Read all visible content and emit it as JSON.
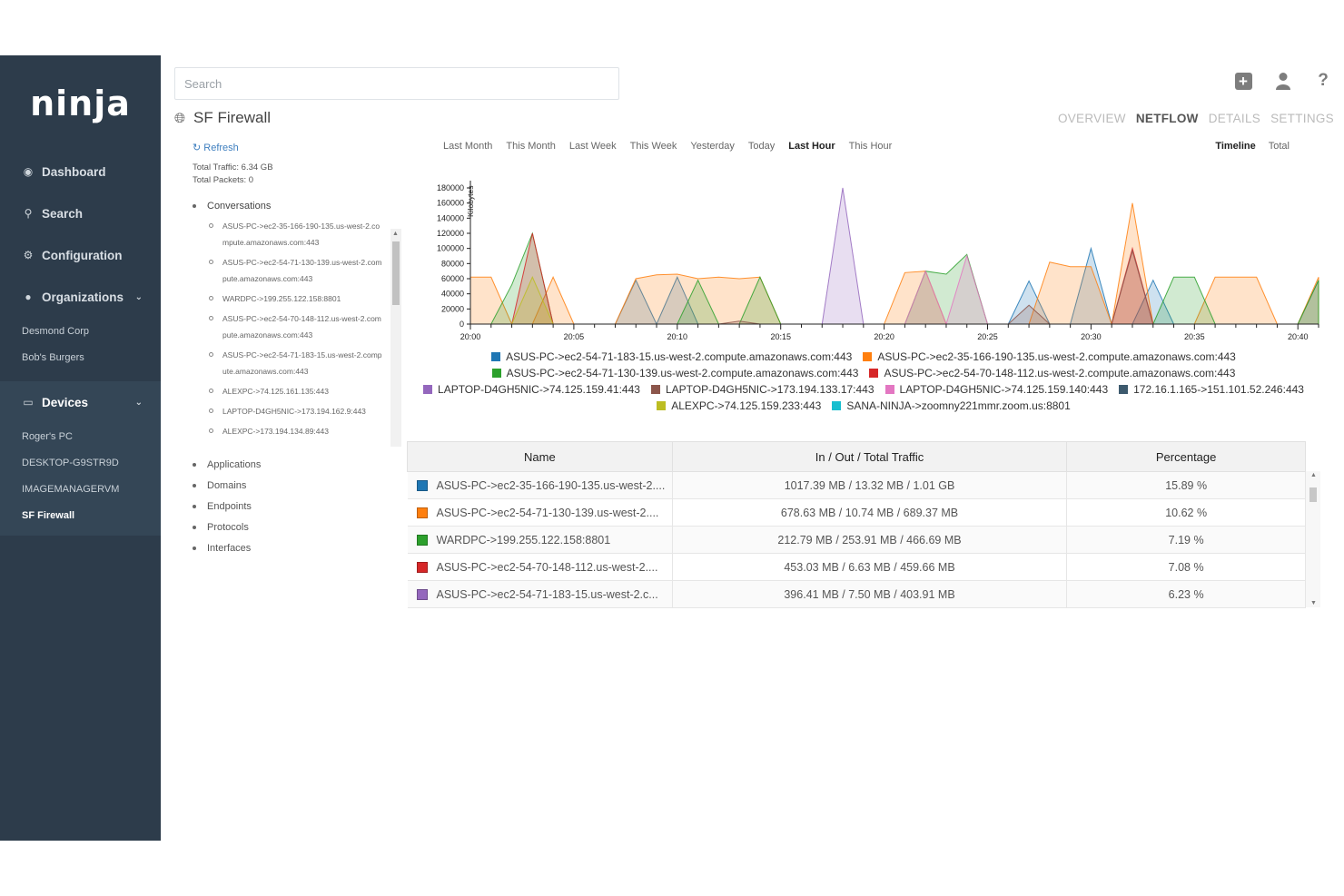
{
  "app": {
    "logo": "ninja"
  },
  "sidebar": {
    "items": [
      {
        "label": "Dashboard",
        "icon": "dashboard-icon"
      },
      {
        "label": "Search",
        "icon": "search-icon"
      },
      {
        "label": "Configuration",
        "icon": "gear-icon"
      },
      {
        "label": "Organizations",
        "icon": "user-icon"
      }
    ],
    "organizations": [
      "Desmond Corp",
      "Bob's Burgers"
    ],
    "devices_label": "Devices",
    "devices": [
      "Roger's PC",
      "DESKTOP-G9STR9D",
      "IMAGEMANAGERVM",
      "SF Firewall"
    ]
  },
  "search": {
    "placeholder": "Search"
  },
  "header": {
    "title": "SF Firewall",
    "tabs": [
      "OVERVIEW",
      "NETFLOW",
      "DETAILS",
      "SETTINGS"
    ],
    "active_tab": "NETFLOW"
  },
  "panel": {
    "refresh": "Refresh",
    "total_traffic": "Total Traffic: 6.34 GB",
    "total_packets": "Total Packets: 0",
    "conversations_label": "Conversations",
    "conversations": [
      "ASUS-PC->ec2-35-166-190-135.us-west-2.compute.amazonaws.com:443",
      "ASUS-PC->ec2-54-71-130-139.us-west-2.compute.amazonaws.com:443",
      "WARDPC->199.255.122.158:8801",
      "ASUS-PC->ec2-54-70-148-112.us-west-2.compute.amazonaws.com:443",
      "ASUS-PC->ec2-54-71-183-15.us-west-2.compute.amazonaws.com:443",
      "ALEXPC->74.125.161.135:443",
      "LAPTOP-D4GH5NIC->173.194.162.9:443",
      "ALEXPC->173.194.134.89:443"
    ],
    "other_groups": [
      "Applications",
      "Domains",
      "Endpoints",
      "Protocols",
      "Interfaces"
    ]
  },
  "ranges": [
    "Last Month",
    "This Month",
    "Last Week",
    "This Week",
    "Yesterday",
    "Today",
    "Last Hour",
    "This Hour"
  ],
  "active_range": "Last Hour",
  "views": [
    "Timeline",
    "Total"
  ],
  "active_view": "Timeline",
  "chart_data": {
    "type": "area",
    "ylabel": "Kilobytes",
    "ylim": [
      0,
      180000
    ],
    "yticks": [
      0,
      20000,
      40000,
      60000,
      80000,
      100000,
      120000,
      140000,
      160000,
      180000
    ],
    "xticks": [
      "20:00",
      "20:05",
      "20:10",
      "20:15",
      "20:20",
      "20:25",
      "20:30",
      "20:35",
      "20:40"
    ],
    "x_minutes": [
      0,
      1,
      2,
      3,
      4,
      5,
      6,
      7,
      8,
      9,
      10,
      11,
      12,
      13,
      14,
      15,
      16,
      17,
      18,
      19,
      20,
      21,
      22,
      23,
      24,
      25,
      26,
      27,
      28,
      29,
      30,
      31,
      32,
      33,
      34,
      35,
      36,
      37,
      38,
      39,
      40,
      41
    ],
    "series": [
      {
        "name": "ASUS-PC->ec2-54-71-183-15.us-west-2.compute.amazonaws.com:443",
        "color": "#1f77b4",
        "values": [
          0,
          0,
          0,
          0,
          0,
          0,
          0,
          0,
          58000,
          0,
          62000,
          0,
          0,
          0,
          0,
          0,
          0,
          0,
          0,
          0,
          0,
          0,
          0,
          0,
          0,
          0,
          0,
          57000,
          0,
          0,
          100000,
          0,
          0,
          58000,
          0,
          0,
          0,
          0,
          0,
          0,
          0,
          58000
        ]
      },
      {
        "name": "ASUS-PC->ec2-35-166-190-135.us-west-2.compute.amazonaws.com:443",
        "color": "#ff7f0e",
        "values": [
          62000,
          62000,
          0,
          0,
          62000,
          0,
          0,
          0,
          60000,
          65000,
          66000,
          60000,
          62000,
          60000,
          62000,
          0,
          0,
          0,
          0,
          0,
          0,
          68000,
          70000,
          0,
          0,
          0,
          0,
          0,
          82000,
          76000,
          76000,
          0,
          160000,
          0,
          0,
          0,
          62000,
          62000,
          62000,
          0,
          0,
          62000
        ]
      },
      {
        "name": "ASUS-PC->ec2-54-71-130-139.us-west-2.compute.amazonaws.com:443",
        "color": "#2ca02c",
        "values": [
          0,
          0,
          52000,
          120000,
          0,
          0,
          0,
          0,
          0,
          0,
          0,
          58000,
          0,
          0,
          62000,
          0,
          0,
          0,
          0,
          0,
          0,
          0,
          70000,
          66000,
          92000,
          0,
          0,
          0,
          0,
          0,
          0,
          0,
          0,
          0,
          62000,
          62000,
          0,
          0,
          0,
          0,
          0,
          58000
        ]
      },
      {
        "name": "ASUS-PC->ec2-54-70-148-112.us-west-2.compute.amazonaws.com:443",
        "color": "#d62728",
        "values": [
          0,
          0,
          0,
          120000,
          0,
          0,
          0,
          0,
          0,
          0,
          0,
          0,
          0,
          0,
          0,
          0,
          0,
          0,
          0,
          0,
          0,
          0,
          0,
          0,
          0,
          0,
          0,
          0,
          0,
          0,
          0,
          0,
          100000,
          0,
          0,
          0,
          0,
          0,
          0,
          0,
          0,
          0
        ]
      },
      {
        "name": "LAPTOP-D4GH5NIC->74.125.159.41:443",
        "color": "#9467bd",
        "values": [
          0,
          0,
          0,
          0,
          0,
          0,
          0,
          0,
          0,
          0,
          0,
          0,
          0,
          0,
          0,
          0,
          0,
          0,
          180000,
          0,
          0,
          0,
          0,
          0,
          0,
          0,
          0,
          0,
          0,
          0,
          0,
          0,
          0,
          0,
          0,
          0,
          0,
          0,
          0,
          0,
          0,
          0
        ]
      },
      {
        "name": "LAPTOP-D4GH5NIC->173.194.133.17:443",
        "color": "#8c564b",
        "values": [
          0,
          0,
          0,
          0,
          0,
          0,
          0,
          0,
          0,
          0,
          0,
          0,
          0,
          4000,
          0,
          0,
          0,
          0,
          0,
          0,
          0,
          0,
          0,
          0,
          0,
          0,
          0,
          25000,
          0,
          0,
          0,
          0,
          97000,
          0,
          0,
          0,
          0,
          0,
          0,
          0,
          0,
          0
        ]
      },
      {
        "name": "LAPTOP-D4GH5NIC->74.125.159.140:443",
        "color": "#e377c2",
        "values": [
          0,
          0,
          0,
          0,
          0,
          0,
          0,
          0,
          0,
          0,
          0,
          0,
          0,
          0,
          0,
          0,
          0,
          0,
          0,
          0,
          0,
          0,
          70000,
          0,
          90000,
          0,
          0,
          0,
          0,
          0,
          0,
          0,
          0,
          0,
          0,
          0,
          0,
          0,
          0,
          0,
          0,
          0
        ]
      },
      {
        "name": "172.16.1.165->151.101.52.246:443",
        "color": "#3d5a6e",
        "values": [
          0,
          0,
          0,
          0,
          0,
          0,
          0,
          0,
          0,
          0,
          0,
          0,
          0,
          0,
          0,
          0,
          0,
          0,
          0,
          0,
          0,
          0,
          0,
          0,
          0,
          0,
          0,
          0,
          0,
          0,
          0,
          0,
          0,
          0,
          0,
          0,
          0,
          0,
          0,
          0,
          0,
          0
        ]
      },
      {
        "name": "ALEXPC->74.125.159.233:443",
        "color": "#bcbd22",
        "values": [
          0,
          0,
          0,
          62000,
          0,
          0,
          0,
          0,
          0,
          0,
          0,
          0,
          0,
          0,
          0,
          0,
          0,
          0,
          0,
          0,
          0,
          0,
          0,
          0,
          0,
          0,
          0,
          0,
          0,
          0,
          0,
          0,
          0,
          0,
          0,
          0,
          0,
          0,
          0,
          0,
          0,
          0
        ]
      },
      {
        "name": "SANA-NINJA->zoomny221mmr.zoom.us:8801",
        "color": "#17becf",
        "values": [
          0,
          0,
          0,
          0,
          0,
          0,
          0,
          0,
          0,
          0,
          0,
          0,
          0,
          0,
          0,
          0,
          0,
          0,
          0,
          0,
          0,
          0,
          0,
          0,
          0,
          0,
          0,
          0,
          0,
          0,
          0,
          0,
          0,
          0,
          0,
          0,
          0,
          0,
          0,
          0,
          0,
          0
        ]
      }
    ]
  },
  "legend_rows": [
    [
      0,
      1
    ],
    [
      2,
      3
    ],
    [
      4,
      5,
      6,
      7
    ],
    [
      8,
      9
    ]
  ],
  "table": {
    "headers": [
      "Name",
      "In / Out / Total Traffic",
      "Percentage"
    ],
    "rows": [
      {
        "name": "ASUS-PC->ec2-35-166-190-135.us-west-2....",
        "traffic": "1017.39 MB / 13.32 MB / 1.01 GB",
        "pct": "15.89 %",
        "color": "#1f77b4"
      },
      {
        "name": "ASUS-PC->ec2-54-71-130-139.us-west-2....",
        "traffic": "678.63 MB / 10.74 MB / 689.37 MB",
        "pct": "10.62 %",
        "color": "#ff7f0e"
      },
      {
        "name": "WARDPC->199.255.122.158:8801",
        "traffic": "212.79 MB / 253.91 MB / 466.69 MB",
        "pct": "7.19 %",
        "color": "#2ca02c"
      },
      {
        "name": "ASUS-PC->ec2-54-70-148-112.us-west-2....",
        "traffic": "453.03 MB / 6.63 MB / 459.66 MB",
        "pct": "7.08 %",
        "color": "#d62728"
      },
      {
        "name": "ASUS-PC->ec2-54-71-183-15.us-west-2.c...",
        "traffic": "396.41 MB / 7.50 MB / 403.91 MB",
        "pct": "6.23 %",
        "color": "#9467bd"
      }
    ]
  }
}
